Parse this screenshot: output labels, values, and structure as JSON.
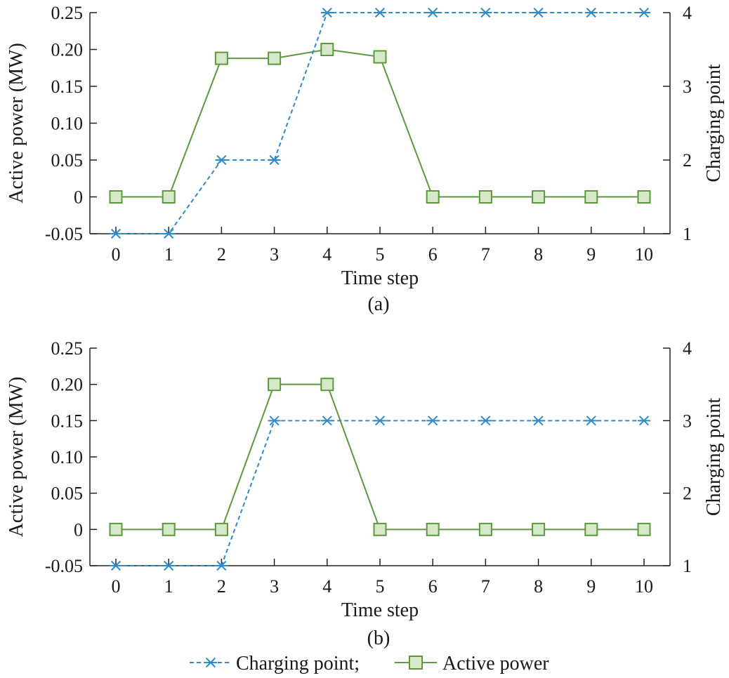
{
  "chart_data": [
    {
      "type": "line",
      "caption": "(a)",
      "xlabel": "Time step",
      "ylabel": "Active power (MW)",
      "y2label": "Charging point",
      "x": [
        0,
        1,
        2,
        3,
        4,
        5,
        6,
        7,
        8,
        9,
        10
      ],
      "xticks": [
        "0",
        "1",
        "2",
        "3",
        "4",
        "5",
        "6",
        "7",
        "8",
        "9",
        "10"
      ],
      "ylim": [
        -0.05,
        0.25
      ],
      "yticks": [
        "-0.05",
        "0",
        "0.05",
        "0.10",
        "0.15",
        "0.20",
        "0.25"
      ],
      "y2lim": [
        1,
        4
      ],
      "y2ticks": [
        "1",
        "2",
        "3",
        "4"
      ],
      "series": [
        {
          "name": "Charging point",
          "axis": "right",
          "style": "dashed",
          "marker": "asterisk",
          "color": "#2e8bc8",
          "values": [
            1,
            1,
            2,
            2,
            4,
            4,
            4,
            4,
            4,
            4,
            4
          ]
        },
        {
          "name": "Active power",
          "axis": "left",
          "style": "solid",
          "marker": "square",
          "color": "#5a9a3c",
          "fill": "#d6e8c8",
          "values": [
            0,
            0,
            0.188,
            0.188,
            0.2,
            0.19,
            0,
            0,
            0,
            0,
            0
          ]
        }
      ]
    },
    {
      "type": "line",
      "caption": "(b)",
      "xlabel": "Time step",
      "ylabel": "Active power (MW)",
      "y2label": "Charging point",
      "x": [
        0,
        1,
        2,
        3,
        4,
        5,
        6,
        7,
        8,
        9,
        10
      ],
      "xticks": [
        "0",
        "1",
        "2",
        "3",
        "4",
        "5",
        "6",
        "7",
        "8",
        "9",
        "10"
      ],
      "ylim": [
        -0.05,
        0.25
      ],
      "yticks": [
        "-0.05",
        "0",
        "0.05",
        "0.10",
        "0.15",
        "0.20",
        "0.25"
      ],
      "y2lim": [
        1,
        4
      ],
      "y2ticks": [
        "1",
        "2",
        "3",
        "4"
      ],
      "series": [
        {
          "name": "Charging point",
          "axis": "right",
          "style": "dashed",
          "marker": "asterisk",
          "color": "#2e8bc8",
          "values": [
            1,
            1,
            1,
            3,
            3,
            3,
            3,
            3,
            3,
            3,
            3
          ]
        },
        {
          "name": "Active power",
          "axis": "left",
          "style": "solid",
          "marker": "square",
          "color": "#5a9a3c",
          "fill": "#d6e8c8",
          "values": [
            0,
            0,
            0,
            0.2,
            0.2,
            0,
            0,
            0,
            0,
            0,
            0
          ]
        }
      ]
    }
  ],
  "legend": {
    "items": [
      {
        "label": "Charging point;",
        "series": "Charging point"
      },
      {
        "label": "Active power",
        "series": "Active power"
      }
    ]
  }
}
